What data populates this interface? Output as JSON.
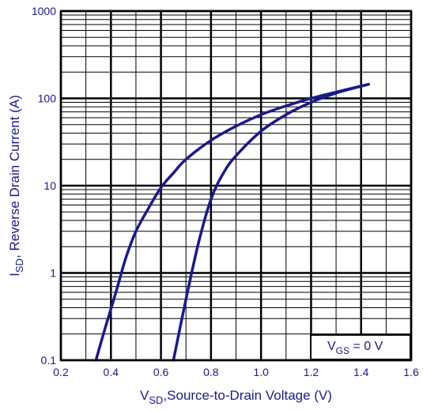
{
  "chart_data": {
    "type": "line",
    "x_scale": "linear",
    "y_scale": "log",
    "xlim": [
      0.2,
      1.6
    ],
    "ylim": [
      0.1,
      1000
    ],
    "x_ticks": [
      "0.2",
      "0.4",
      "0.6",
      "0.8",
      "1.0",
      "1.2",
      "1.4",
      "1.6"
    ],
    "y_ticks": [
      "0.1",
      "1",
      "10",
      "100",
      "1000"
    ],
    "xlabel": {
      "main": "V",
      "sub": "SD",
      "rest": ",Source-to-Drain Voltage (V)"
    },
    "ylabel": {
      "main": "I",
      "sub": "SD",
      "rest": ", Reverse Drain Current (A)"
    },
    "annotation": {
      "main": "V",
      "sub": "GS",
      "rest": " = 0 V"
    },
    "grid": true,
    "line_color": "#1a1a8c",
    "series": [
      {
        "x": [
          0.34,
          0.38,
          0.42,
          0.46,
          0.5,
          0.55,
          0.6,
          0.65,
          0.7,
          0.8,
          0.9,
          1.0,
          1.1,
          1.2,
          1.3,
          1.43
        ],
        "y": [
          0.1,
          0.25,
          0.6,
          1.5,
          3.0,
          5.5,
          9.5,
          14,
          20,
          33,
          48,
          65,
          82,
          100,
          118,
          145
        ]
      },
      {
        "x": [
          0.65,
          0.7,
          0.75,
          0.8,
          0.85,
          0.9,
          1.0,
          1.1,
          1.2,
          1.3,
          1.43
        ],
        "y": [
          0.1,
          0.5,
          2.2,
          7.0,
          14,
          22,
          42,
          65,
          90,
          115,
          145
        ]
      }
    ]
  }
}
